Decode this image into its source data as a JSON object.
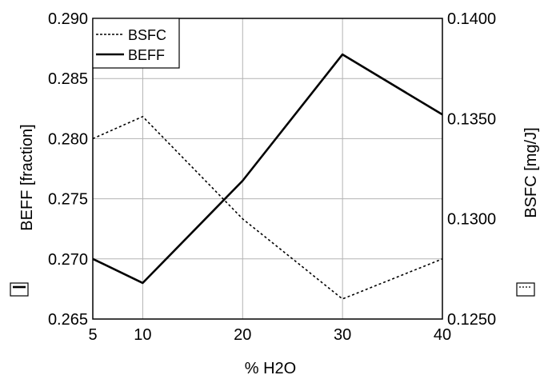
{
  "chart_data": {
    "type": "line",
    "title": "",
    "xlabel": "% H2O",
    "x_ticks": [
      "5",
      "10",
      "20",
      "30",
      "40"
    ],
    "xlim": [
      5,
      40
    ],
    "y_left": {
      "label": "BEFF [fraction]",
      "ylim": [
        0.265,
        0.29
      ],
      "ticks": [
        "0.265",
        "0.270",
        "0.275",
        "0.280",
        "0.285",
        "0.290"
      ]
    },
    "y_right": {
      "label": "BSFC [mg/J]",
      "ylim": [
        0.125,
        0.14
      ],
      "ticks": [
        "0.1250",
        "0.1300",
        "0.1350",
        "0.1400"
      ]
    },
    "series": [
      {
        "name": "BSFC",
        "axis": "right",
        "style": "dotted",
        "x": [
          5,
          10,
          20,
          30,
          40
        ],
        "y": [
          0.134,
          0.1351,
          0.13,
          0.126,
          0.128
        ]
      },
      {
        "name": "BEFF",
        "axis": "left",
        "style": "solid",
        "x": [
          5,
          10,
          20,
          30,
          40
        ],
        "y": [
          0.27,
          0.268,
          0.2765,
          0.287,
          0.282
        ]
      }
    ],
    "grid": true,
    "legend_position": "top-left"
  }
}
